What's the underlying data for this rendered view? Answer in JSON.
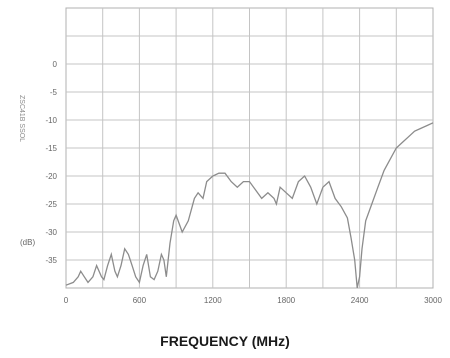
{
  "chart_data": {
    "type": "line",
    "xlabel": "FREQUENCY (MHz)",
    "ylabel_stacked": "ZSC41B  SSOL",
    "yunit": "(dB)",
    "xlim": [
      0,
      3000
    ],
    "ylim": [
      -40,
      10
    ],
    "grid": true,
    "x_ticks": [
      0,
      600,
      1200,
      1800,
      2400,
      3000
    ],
    "y_ticks": [
      0,
      -5,
      -10,
      -15,
      -20,
      -25,
      -30,
      -35
    ],
    "series": [
      {
        "x": [
          0,
          60,
          100,
          120,
          150,
          180,
          220,
          250,
          290,
          310,
          340,
          370,
          400,
          420,
          450,
          480,
          510,
          540,
          570,
          600,
          630,
          660,
          690,
          720,
          750,
          780,
          800,
          820,
          850,
          880,
          900,
          950,
          1000,
          1050,
          1080,
          1120,
          1150,
          1200,
          1250,
          1300,
          1350,
          1400,
          1450,
          1500,
          1550,
          1600,
          1650,
          1700,
          1720,
          1750,
          1800,
          1850,
          1900,
          1950,
          2000,
          2050,
          2100,
          2150,
          2200,
          2250,
          2300,
          2330,
          2360,
          2380,
          2400,
          2420,
          2450,
          2500,
          2550,
          2600,
          2650,
          2700,
          2750,
          2800,
          2850,
          2900,
          2950,
          3000
        ],
        "y": [
          -39.5,
          -39,
          -38,
          -37,
          -38,
          -39,
          -38,
          -36,
          -38,
          -38.5,
          -36,
          -34,
          -37,
          -38,
          -36,
          -33,
          -34,
          -36,
          -38,
          -39,
          -36,
          -34,
          -38,
          -38.5,
          -37,
          -34,
          -35,
          -38,
          -32,
          -28,
          -27,
          -30,
          -28,
          -24,
          -23,
          -24,
          -21,
          -20,
          -19.5,
          -19.5,
          -21,
          -22,
          -21,
          -21,
          -22.5,
          -24,
          -23,
          -24,
          -25,
          -22,
          -23,
          -24,
          -21,
          -20,
          -22,
          -25,
          -22,
          -21,
          -24,
          -25.5,
          -27.5,
          -31,
          -35,
          -40,
          -38,
          -33,
          -28,
          -25,
          -22,
          -19,
          -17,
          -15,
          -14,
          -13,
          -12,
          -11.5,
          -11,
          -10.5
        ]
      }
    ]
  },
  "style": {
    "line_color": "#8c8c8c",
    "grid_color": "#c4c4c4",
    "frame_color": "#b0b0b0"
  }
}
